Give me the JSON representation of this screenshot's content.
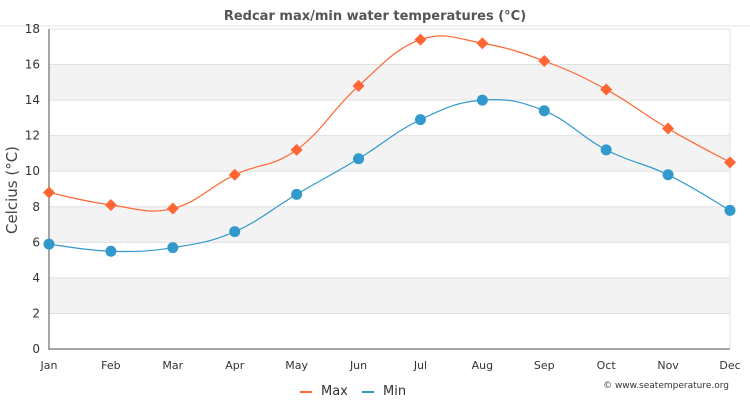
{
  "chart_data": {
    "type": "line",
    "title": "Redcar max/min water temperatures (°C)",
    "xlabel": "",
    "ylabel": "Celcius (°C)",
    "categories": [
      "Jan",
      "Feb",
      "Mar",
      "Apr",
      "May",
      "Jun",
      "Jul",
      "Aug",
      "Sep",
      "Oct",
      "Nov",
      "Dec"
    ],
    "ylim": [
      0,
      18
    ],
    "yticks": [
      0,
      2,
      4,
      6,
      8,
      10,
      12,
      14,
      16,
      18
    ],
    "grid": true,
    "legend_position": "bottom-center",
    "series": [
      {
        "name": "Max",
        "color": "#ff6633",
        "marker": "diamond",
        "values": [
          8.8,
          8.1,
          7.9,
          9.8,
          11.2,
          14.8,
          17.4,
          17.2,
          16.2,
          14.6,
          12.4,
          10.5
        ]
      },
      {
        "name": "Min",
        "color": "#3399cc",
        "marker": "circle",
        "values": [
          5.9,
          5.5,
          5.7,
          6.6,
          8.7,
          10.7,
          12.9,
          14.0,
          13.4,
          11.2,
          9.8,
          7.8
        ]
      }
    ],
    "credit": "© www.seatemperature.org"
  }
}
